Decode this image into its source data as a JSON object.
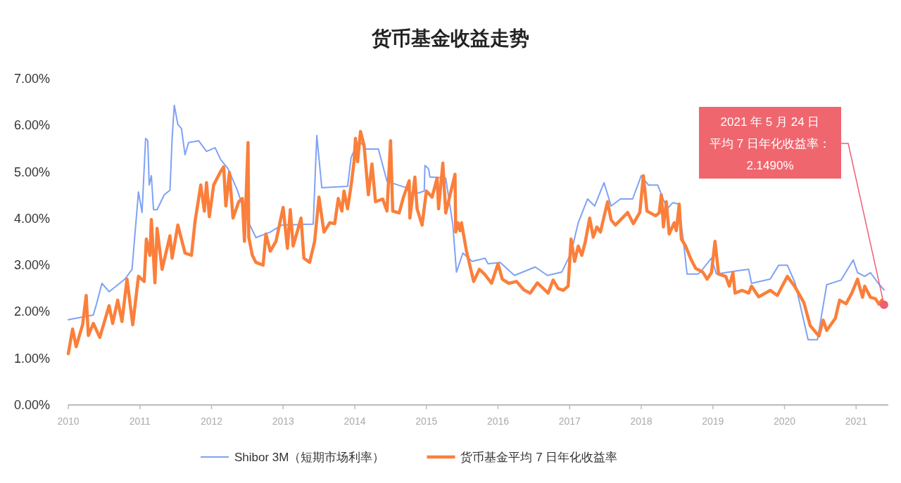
{
  "chart_data": {
    "type": "line",
    "title": "货币基金收益走势",
    "xlim": [
      2010,
      2021.45
    ],
    "xticks": [
      2010,
      2011,
      2012,
      2013,
      2014,
      2015,
      2016,
      2017,
      2018,
      2019,
      2020,
      2021
    ],
    "ylim": [
      0,
      7
    ],
    "yticks": [
      {
        "value": 0,
        "label": "0.00%"
      },
      {
        "value": 1,
        "label": "1.00%"
      },
      {
        "value": 2,
        "label": "2.00%"
      },
      {
        "value": 3,
        "label": "3.00%"
      },
      {
        "value": 4,
        "label": "4.00%"
      },
      {
        "value": 5,
        "label": "5.00%"
      },
      {
        "value": 6,
        "label": "6.00%"
      },
      {
        "value": 7,
        "label": "7.00%"
      }
    ],
    "legend": "bottom",
    "annotations": [
      "2021 年 5 月 24 日",
      {
        "text": "平均 7 日年化收益率：",
        "x": 2021.39,
        "y": 2.149
      },
      "2.1490%"
    ],
    "series": [
      {
        "name": "Shibor 3M（短期市场利率）",
        "color": "#7fa2f5",
        "x": [
          2010.0,
          2010.35,
          2010.4,
          2010.47,
          2010.57,
          2010.79,
          2010.89,
          2010.98,
          2011.03,
          2011.08,
          2011.11,
          2011.13,
          2011.16,
          2011.19,
          2011.24,
          2011.34,
          2011.42,
          2011.45,
          2011.48,
          2011.53,
          2011.58,
          2011.63,
          2011.68,
          2011.82,
          2011.93,
          2012.05,
          2012.13,
          2012.23,
          2012.36,
          2012.49,
          2012.62,
          2012.82,
          2012.98,
          2013.42,
          2013.47,
          2013.54,
          2013.9,
          2013.95,
          2014.06,
          2014.16,
          2014.33,
          2014.45,
          2014.72,
          2014.81,
          2014.97,
          2014.98,
          2015.03,
          2015.05,
          2015.27,
          2015.37,
          2015.42,
          2015.51,
          2015.64,
          2015.82,
          2015.86,
          2016.03,
          2016.23,
          2016.52,
          2016.69,
          2016.89,
          2017.02,
          2017.12,
          2017.25,
          2017.35,
          2017.48,
          2017.58,
          2017.71,
          2017.88,
          2018.0,
          2018.1,
          2018.23,
          2018.36,
          2018.44,
          2018.52,
          2018.59,
          2018.64,
          2018.79,
          2018.82,
          2018.98,
          2019.05,
          2019.35,
          2019.5,
          2019.54,
          2019.8,
          2019.92,
          2020.04,
          2020.15,
          2020.33,
          2020.46,
          2020.59,
          2020.79,
          2020.96,
          2021.02,
          2021.12,
          2021.2,
          2021.31,
          2021.39
        ],
        "values": [
          1.83,
          1.93,
          2.2,
          2.61,
          2.43,
          2.7,
          2.91,
          4.57,
          4.13,
          5.72,
          5.67,
          4.72,
          4.92,
          4.19,
          4.19,
          4.51,
          4.61,
          5.72,
          6.43,
          6.02,
          5.93,
          5.37,
          5.63,
          5.67,
          5.44,
          5.52,
          5.26,
          5.07,
          4.61,
          4.01,
          3.59,
          3.71,
          3.86,
          3.88,
          5.78,
          4.66,
          4.69,
          5.32,
          5.67,
          5.49,
          5.49,
          4.8,
          4.66,
          4.51,
          4.59,
          5.14,
          5.07,
          4.89,
          4.87,
          3.86,
          2.85,
          3.26,
          3.08,
          3.15,
          3.03,
          3.06,
          2.78,
          2.96,
          2.78,
          2.85,
          3.26,
          3.91,
          4.42,
          4.27,
          4.77,
          4.27,
          4.42,
          4.42,
          4.92,
          4.72,
          4.72,
          4.21,
          4.34,
          4.31,
          3.51,
          2.81,
          2.81,
          2.84,
          3.15,
          2.81,
          2.88,
          2.91,
          2.61,
          2.7,
          3.0,
          3.0,
          2.61,
          1.4,
          1.4,
          2.58,
          2.68,
          3.11,
          2.84,
          2.76,
          2.84,
          2.61,
          2.47
        ]
      },
      {
        "name": "货币基金平均 7 日年化收益率",
        "color": "#fb7f3b",
        "x": [
          2010.0,
          2010.06,
          2010.11,
          2010.2,
          2010.25,
          2010.28,
          2010.35,
          2010.44,
          2010.57,
          2010.62,
          2010.69,
          2010.75,
          2010.82,
          2010.9,
          2010.98,
          2011.06,
          2011.09,
          2011.14,
          2011.16,
          2011.21,
          2011.24,
          2011.31,
          2011.42,
          2011.45,
          2011.53,
          2011.63,
          2011.72,
          2011.77,
          2011.85,
          2011.9,
          2011.93,
          2011.97,
          2012.03,
          2012.12,
          2012.17,
          2012.2,
          2012.25,
          2012.3,
          2012.38,
          2012.43,
          2012.46,
          2012.51,
          2012.52,
          2012.57,
          2012.62,
          2012.72,
          2012.76,
          2012.82,
          2012.9,
          2013.0,
          2013.06,
          2013.1,
          2013.14,
          2013.19,
          2013.25,
          2013.29,
          2013.37,
          2013.44,
          2013.5,
          2013.57,
          2013.65,
          2013.72,
          2013.77,
          2013.82,
          2013.85,
          2013.9,
          2013.95,
          2013.99,
          2014.01,
          2014.04,
          2014.08,
          2014.13,
          2014.19,
          2014.24,
          2014.29,
          2014.39,
          2014.45,
          2014.5,
          2014.53,
          2014.62,
          2014.68,
          2014.76,
          2014.77,
          2014.84,
          2014.87,
          2014.94,
          2015.0,
          2015.08,
          2015.15,
          2015.17,
          2015.23,
          2015.27,
          2015.4,
          2015.41,
          2015.44,
          2015.47,
          2015.49,
          2015.56,
          2015.66,
          2015.74,
          2015.81,
          2015.91,
          2016.0,
          2016.06,
          2016.15,
          2016.26,
          2016.36,
          2016.45,
          2016.55,
          2016.7,
          2016.77,
          2016.84,
          2016.91,
          2016.98,
          2017.02,
          2017.07,
          2017.12,
          2017.17,
          2017.22,
          2017.28,
          2017.33,
          2017.38,
          2017.43,
          2017.53,
          2017.58,
          2017.64,
          2017.71,
          2017.81,
          2017.89,
          2017.98,
          2018.03,
          2018.08,
          2018.2,
          2018.25,
          2018.28,
          2018.31,
          2018.35,
          2018.39,
          2018.46,
          2018.49,
          2018.53,
          2018.56,
          2018.62,
          2018.69,
          2018.76,
          2018.86,
          2018.92,
          2018.98,
          2019.03,
          2019.08,
          2019.18,
          2019.23,
          2019.28,
          2019.31,
          2019.41,
          2019.5,
          2019.54,
          2019.64,
          2019.8,
          2019.9,
          2020.04,
          2020.14,
          2020.27,
          2020.36,
          2020.48,
          2020.54,
          2020.59,
          2020.71,
          2020.77,
          2020.86,
          2020.94,
          2021.02,
          2021.09,
          2021.12,
          2021.2,
          2021.27,
          2021.32,
          2021.36,
          2021.39
        ],
        "values": [
          1.1,
          1.63,
          1.25,
          1.72,
          2.35,
          1.49,
          1.75,
          1.45,
          2.13,
          1.75,
          2.25,
          1.79,
          2.7,
          1.72,
          2.76,
          2.65,
          3.56,
          3.21,
          3.98,
          2.62,
          3.79,
          2.91,
          3.63,
          3.15,
          3.86,
          3.26,
          3.21,
          3.94,
          4.72,
          4.16,
          4.77,
          4.04,
          4.72,
          4.99,
          5.11,
          4.27,
          4.99,
          4.01,
          4.36,
          4.43,
          3.51,
          5.63,
          3.6,
          3.21,
          3.06,
          3.0,
          3.67,
          3.3,
          3.51,
          4.24,
          3.36,
          4.19,
          3.41,
          3.68,
          4.01,
          3.15,
          3.06,
          3.51,
          4.46,
          3.71,
          3.91,
          3.89,
          4.43,
          4.16,
          4.59,
          4.21,
          4.72,
          5.22,
          5.72,
          5.22,
          5.87,
          5.57,
          4.51,
          5.17,
          4.36,
          4.42,
          4.16,
          5.67,
          4.16,
          4.12,
          4.46,
          4.81,
          4.01,
          4.89,
          4.21,
          3.86,
          4.59,
          4.46,
          4.87,
          4.21,
          5.19,
          4.12,
          4.95,
          3.71,
          3.91,
          3.74,
          3.91,
          3.3,
          2.65,
          2.91,
          2.81,
          2.61,
          3.03,
          2.7,
          2.61,
          2.65,
          2.47,
          2.4,
          2.62,
          2.4,
          2.68,
          2.5,
          2.46,
          2.55,
          3.56,
          3.08,
          3.41,
          3.21,
          3.51,
          4.01,
          3.6,
          3.82,
          3.71,
          4.36,
          3.97,
          3.86,
          3.97,
          4.13,
          3.89,
          4.13,
          4.92,
          4.16,
          4.06,
          4.12,
          4.51,
          3.82,
          4.36,
          3.67,
          3.91,
          3.74,
          4.31,
          3.56,
          3.41,
          3.14,
          2.93,
          2.85,
          2.7,
          2.84,
          3.51,
          2.81,
          2.76,
          2.55,
          2.84,
          2.4,
          2.46,
          2.4,
          2.55,
          2.32,
          2.46,
          2.35,
          2.76,
          2.55,
          2.2,
          1.7,
          1.48,
          1.82,
          1.6,
          1.86,
          2.25,
          2.17,
          2.4,
          2.7,
          2.31,
          2.55,
          2.31,
          2.28,
          2.16,
          2.25,
          2.149
        ]
      }
    ]
  }
}
